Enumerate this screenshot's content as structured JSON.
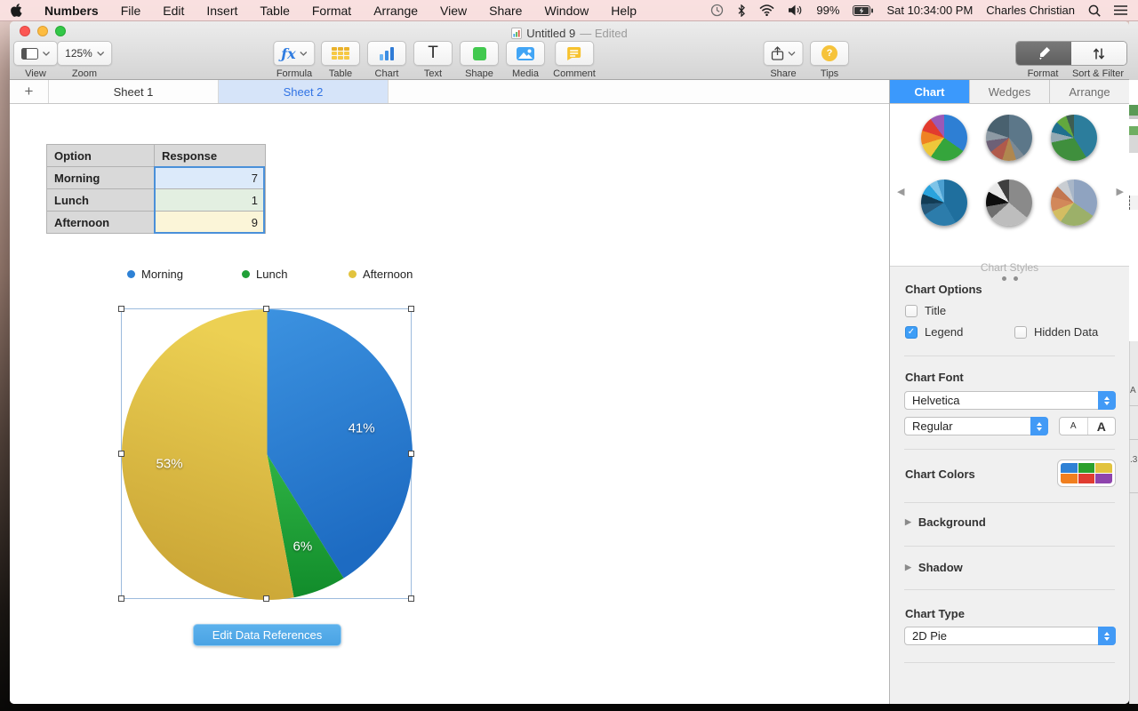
{
  "menu_bar": {
    "items": [
      "Numbers",
      "File",
      "Edit",
      "Insert",
      "Table",
      "Format",
      "Arrange",
      "View",
      "Share",
      "Window",
      "Help"
    ],
    "status": {
      "battery_pct": "99%",
      "datetime": "Sat 10:34:00 PM",
      "user": "Charles Christian"
    }
  },
  "window": {
    "title": "Untitled 9",
    "edited_suffix": "— Edited",
    "toolbar": {
      "view_label": "View",
      "zoom_value": "125%",
      "zoom_label": "Zoom",
      "formula_label": "Formula",
      "table_label": "Table",
      "chart_label": "Chart",
      "text_label": "Text",
      "shape_label": "Shape",
      "media_label": "Media",
      "comment_label": "Comment",
      "share_label": "Share",
      "tips_label": "Tips",
      "format_label": "Format",
      "sort_filter_label": "Sort & Filter"
    },
    "sheet_tabs": {
      "add": "+",
      "tabs": [
        {
          "label": "Sheet 1",
          "active": false
        },
        {
          "label": "Sheet 2",
          "active": true
        }
      ]
    }
  },
  "table": {
    "headers": [
      "Option",
      "Response"
    ],
    "rows": [
      {
        "option": "Morning",
        "response": "7",
        "fill": "#dceafa"
      },
      {
        "option": "Lunch",
        "response": "1",
        "fill": "#e3efe1"
      },
      {
        "option": "Afternoon",
        "response": "9",
        "fill": "#fbf5d8"
      }
    ]
  },
  "chart_data": {
    "type": "pie",
    "categories": [
      "Morning",
      "Lunch",
      "Afternoon"
    ],
    "values": [
      7,
      1,
      9
    ],
    "percent_labels": [
      "41%",
      "6%",
      "53%"
    ],
    "colors": [
      "#2e81d5",
      "#21a038",
      "#e2c33e"
    ],
    "start_angle_deg": 0,
    "legend_position": "top",
    "title": ""
  },
  "canvas": {
    "edit_button_label": "Edit Data References"
  },
  "sidebar": {
    "tabs": [
      {
        "label": "Chart",
        "active": true
      },
      {
        "label": "Wedges",
        "active": false
      },
      {
        "label": "Arrange",
        "active": false
      }
    ],
    "styles_label": "Chart Styles",
    "options": {
      "header": "Chart Options",
      "title": "Title",
      "legend": "Legend",
      "hidden_data": "Hidden Data",
      "title_checked": false,
      "legend_checked": true,
      "hidden_data_checked": false
    },
    "font": {
      "header": "Chart Font",
      "family": "Helvetica",
      "style": "Regular",
      "small_a": "A",
      "big_a": "A"
    },
    "colors": {
      "header": "Chart Colors",
      "swatches": [
        "#2e81d5",
        "#2ca02c",
        "#e2c33e",
        "#f07f1f",
        "#e03c31",
        "#8e44ad"
      ]
    },
    "background_label": "Background",
    "shadow_label": "Shadow",
    "chart_type": {
      "header": "Chart Type",
      "value": "2D Pie"
    }
  },
  "edge_fragments": {
    "a": "A",
    "num": ".3"
  }
}
